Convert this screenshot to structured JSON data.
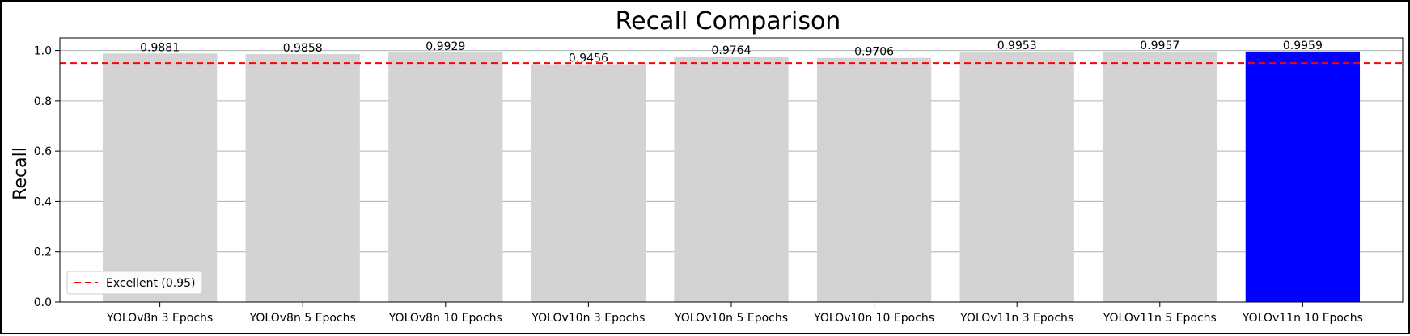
{
  "chart_data": {
    "type": "bar",
    "title": "Recall Comparison",
    "xlabel": "",
    "ylabel": "Recall",
    "ylim": [
      0,
      1.05
    ],
    "yticks": [
      0.0,
      0.2,
      0.4,
      0.6,
      0.8,
      1.0
    ],
    "ytick_labels": [
      "0.0",
      "0.2",
      "0.4",
      "0.6",
      "0.8",
      "1.0"
    ],
    "grid": "horizontal",
    "categories": [
      "YOLOv8n 3 Epochs",
      "YOLOv8n 5 Epochs",
      "YOLOv8n 10 Epochs",
      "YOLOv10n 3 Epochs",
      "YOLOv10n 5 Epochs",
      "YOLOv10n 10 Epochs",
      "YOLOv11n 3 Epochs",
      "YOLOv11n 5 Epochs",
      "YOLOv11n 10 Epochs"
    ],
    "values": [
      0.9881,
      0.9858,
      0.9929,
      0.9456,
      0.9764,
      0.9706,
      0.9953,
      0.9957,
      0.9959
    ],
    "value_labels": [
      "0.9881",
      "0.9858",
      "0.9929",
      "0.9456",
      "0.9764",
      "0.9706",
      "0.9953",
      "0.9957",
      "0.9959"
    ],
    "highlight_index": 8,
    "colors": {
      "bar": "#d3d3d3",
      "highlight": "#0000ff",
      "threshold": "#ff0000",
      "grid": "#b0b0b0",
      "axis": "#000000"
    },
    "threshold": {
      "value": 0.95,
      "label": "Excellent (0.95)",
      "style": "dashed"
    },
    "legend": {
      "position": "lower-left",
      "entries": [
        "Excellent (0.95)"
      ]
    }
  }
}
